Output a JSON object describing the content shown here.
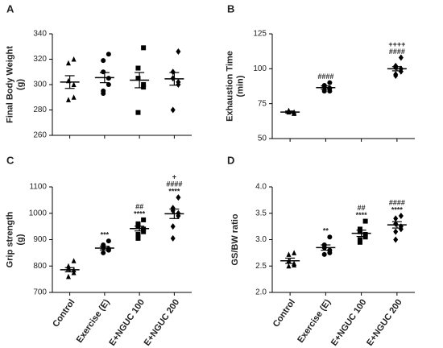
{
  "chart_data": [
    {
      "type": "dot",
      "panel_label": "A",
      "ylabel": "Final Body Weight\n(g)",
      "categories": [
        null,
        null,
        null,
        null
      ],
      "ylim": [
        260,
        340
      ],
      "yticks": [
        260,
        280,
        300,
        320,
        340
      ],
      "color": "#000000",
      "groups": [
        {
          "marker": "triangle",
          "points": [
            320,
            317,
            303,
            300,
            290,
            288
          ],
          "mean": 302,
          "sem": 5,
          "annotation": []
        },
        {
          "marker": "circle",
          "points": [
            324,
            319,
            310,
            305,
            300,
            295,
            293
          ],
          "mean": 305.5,
          "sem": 4,
          "annotation": []
        },
        {
          "marker": "square",
          "points": [
            329,
            313,
            305,
            300,
            298,
            278
          ],
          "mean": 303.5,
          "sem": 6,
          "annotation": []
        },
        {
          "marker": "diamond",
          "points": [
            326,
            310,
            305,
            302,
            300,
            280
          ],
          "mean": 304.5,
          "sem": 5,
          "annotation": []
        }
      ]
    },
    {
      "type": "dot",
      "panel_label": "B",
      "ylabel": "Exhaustion Time\n(min)",
      "categories": [
        null,
        null,
        null,
        null
      ],
      "ylim": [
        50,
        125
      ],
      "yticks": [
        50,
        75,
        100,
        125
      ],
      "color": "#000000",
      "groups": [
        {
          "marker": "triangle",
          "points": [
            68,
            69,
            70,
            68,
            69,
            70
          ],
          "mean": 69,
          "sem": 0.7,
          "annotation": []
        },
        {
          "marker": "circle",
          "points": [
            90,
            88,
            87,
            86,
            84,
            84,
            88
          ],
          "mean": 86.5,
          "sem": 1.2,
          "annotation": [
            "####"
          ]
        },
        {
          "marker": "square",
          "points": [],
          "mean": null,
          "sem": null,
          "annotation": []
        },
        {
          "marker": "diamond",
          "points": [
            108,
            102,
            101,
            100,
            98,
            96,
            95
          ],
          "mean": 100,
          "sem": 1.5,
          "annotation": [
            "++++",
            "####"
          ]
        }
      ]
    },
    {
      "type": "dot",
      "panel_label": "C",
      "ylabel": "Grip strength\n(g)",
      "categories": [
        "Control",
        "Exercise (E)",
        "E+NGUC 100",
        "E+NGUC 200"
      ],
      "ylim": [
        700,
        1100
      ],
      "yticks": [
        700,
        800,
        900,
        1000,
        1100
      ],
      "color": "#000000",
      "groups": [
        {
          "marker": "triangle",
          "points": [
            820,
            800,
            790,
            785,
            775,
            760
          ],
          "mean": 786,
          "sem": 8,
          "annotation": []
        },
        {
          "marker": "circle",
          "points": [
            895,
            880,
            870,
            865,
            860,
            850
          ],
          "mean": 868,
          "sem": 7,
          "annotation": [
            "***"
          ]
        },
        {
          "marker": "square",
          "points": [
            975,
            960,
            950,
            940,
            930,
            920,
            905
          ],
          "mean": 942,
          "sem": 9,
          "annotation": [
            "##",
            "****"
          ]
        },
        {
          "marker": "diamond",
          "points": [
            1060,
            1020,
            1010,
            1000,
            990,
            950,
            905
          ],
          "mean": 998,
          "sem": 18,
          "annotation": [
            "+",
            "####",
            "****"
          ]
        }
      ]
    },
    {
      "type": "dot",
      "panel_label": "D",
      "ylabel": "GS/BW ratio",
      "categories": [
        "Control",
        "Exercise (E)",
        "E+NGUC 100",
        "E+NGUC 200"
      ],
      "ylim": [
        2,
        4
      ],
      "yticks": [
        {
          "value": 2,
          "label": "2.0"
        },
        {
          "value": 2.5,
          "label": "2.5"
        },
        {
          "value": 3,
          "label": "3.0"
        },
        {
          "value": 3.5,
          "label": "3.5"
        },
        {
          "value": 4,
          "label": "4.0"
        }
      ],
      "color": "#000000",
      "groups": [
        {
          "marker": "triangle",
          "points": [
            2.75,
            2.72,
            2.6,
            2.55,
            2.52,
            2.5
          ],
          "mean": 2.6,
          "sem": 0.05,
          "annotation": []
        },
        {
          "marker": "circle",
          "points": [
            3.05,
            2.9,
            2.85,
            2.8,
            2.75,
            2.72
          ],
          "mean": 2.85,
          "sem": 0.05,
          "annotation": [
            "**"
          ]
        },
        {
          "marker": "square",
          "points": [
            3.35,
            3.2,
            3.15,
            3.1,
            3.05,
            3.0,
            2.95
          ],
          "mean": 3.12,
          "sem": 0.06,
          "annotation": [
            "##",
            "****"
          ]
        },
        {
          "marker": "diamond",
          "points": [
            3.45,
            3.4,
            3.3,
            3.25,
            3.2,
            3.15,
            3.0
          ],
          "mean": 3.28,
          "sem": 0.06,
          "annotation": [
            "####",
            "****"
          ]
        }
      ]
    }
  ]
}
